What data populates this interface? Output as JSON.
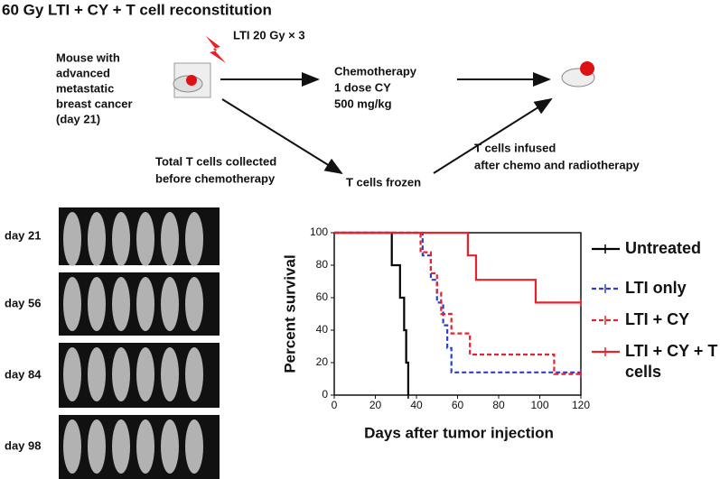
{
  "title": "60 Gy LTI + CY + T cell reconstitution",
  "schematic": {
    "radiation": "LTI 20 Gy × 3",
    "mouse": [
      "Mouse with",
      "advanced",
      "metastatic",
      "breast cancer",
      "(day 21)"
    ],
    "chemo": [
      "Chemotherapy",
      "1 dose CY",
      "500 mg/kg"
    ],
    "collected": [
      "Total T cells collected",
      "before chemotherapy"
    ],
    "frozen": "T cells frozen",
    "infused": [
      "T cells infused",
      "after chemo and radiotherapy"
    ]
  },
  "imaging": {
    "days": [
      "day 21",
      "day 56",
      "day 84",
      "day 98"
    ]
  },
  "chart_data": {
    "type": "step",
    "xlabel": "Days after tumor injection",
    "ylabel": "Percent survival",
    "xlim": [
      0,
      120
    ],
    "ylim": [
      0,
      100
    ],
    "xticks": [
      0,
      20,
      40,
      60,
      80,
      100,
      120
    ],
    "yticks": [
      0,
      20,
      40,
      60,
      80,
      100
    ],
    "series": [
      {
        "name": "Untreated",
        "color": "#000000",
        "dashed": false,
        "x": [
          0,
          28,
          32,
          34,
          35,
          36
        ],
        "values": [
          100,
          80,
          60,
          40,
          20,
          0
        ]
      },
      {
        "name": "LTI only",
        "color": "#2a3fd0",
        "dashed": true,
        "x": [
          0,
          43,
          47,
          50,
          53,
          55,
          57,
          120
        ],
        "values": [
          100,
          86,
          71,
          57,
          43,
          29,
          14,
          14
        ]
      },
      {
        "name": "LTI + CY",
        "color": "#e8222c",
        "dashed": true,
        "x": [
          0,
          42,
          47,
          50,
          52,
          57,
          66,
          107,
          120
        ],
        "values": [
          100,
          88,
          75,
          63,
          50,
          38,
          25,
          13,
          13
        ]
      },
      {
        "name": "LTI + CY + T cells",
        "color": "#e8222c",
        "dashed": false,
        "x": [
          0,
          65,
          69,
          98,
          120
        ],
        "values": [
          100,
          86,
          71,
          57,
          57
        ]
      }
    ]
  }
}
